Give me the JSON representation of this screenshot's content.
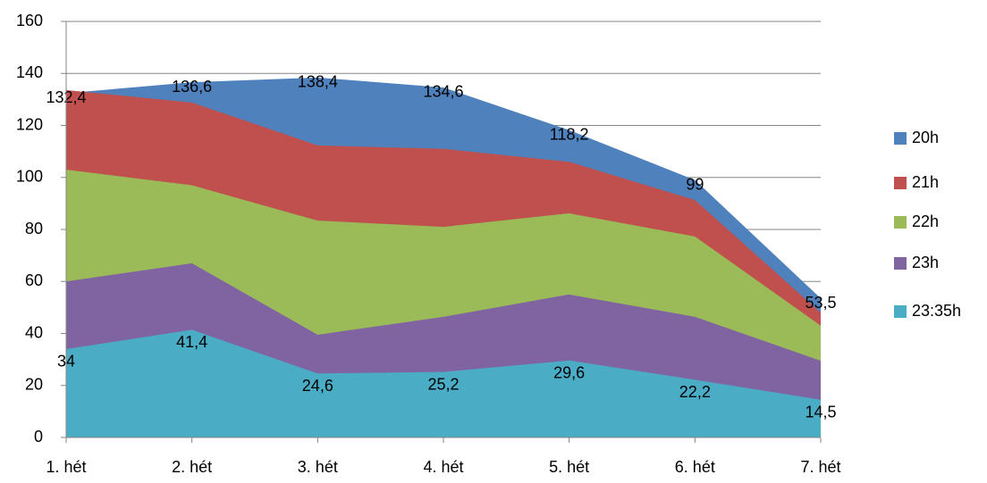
{
  "chart_data": {
    "type": "area",
    "categories": [
      "1. hét",
      "2. hét",
      "3. hét",
      "4. hét",
      "5. hét",
      "6. hét",
      "7. hét"
    ],
    "series": [
      {
        "name": "20h",
        "color": "#4f81bd",
        "values": [
          132.4,
          136.6,
          138.4,
          134.6,
          118.2,
          99,
          53.5
        ],
        "value_labels": [
          "132,4",
          "136,6",
          "138,4",
          "134,6",
          "118,2",
          "99",
          "53,5"
        ]
      },
      {
        "name": "21h",
        "color": "#c0504d",
        "values": [
          133.6,
          128.8,
          112.3,
          111,
          106,
          91.3,
          48
        ]
      },
      {
        "name": "22h",
        "color": "#9bbb59",
        "values": [
          103,
          97,
          83.4,
          81,
          86.2,
          77.3,
          43
        ]
      },
      {
        "name": "23h",
        "color": "#8064a2",
        "values": [
          60,
          67,
          39.5,
          46.4,
          55,
          46.4,
          29.5
        ]
      },
      {
        "name": "23:35h",
        "color": "#4bacc6",
        "values": [
          34,
          41.4,
          24.6,
          25.2,
          29.6,
          22.2,
          14.5
        ],
        "value_labels": [
          "34",
          "41,4",
          "24,6",
          "25,2",
          "29,6",
          "22,2",
          "14,5"
        ]
      }
    ],
    "ylim": [
      0,
      160
    ],
    "yticks": [
      0,
      20,
      40,
      60,
      80,
      100,
      120,
      140,
      160
    ],
    "grid": true,
    "legend": "right"
  }
}
